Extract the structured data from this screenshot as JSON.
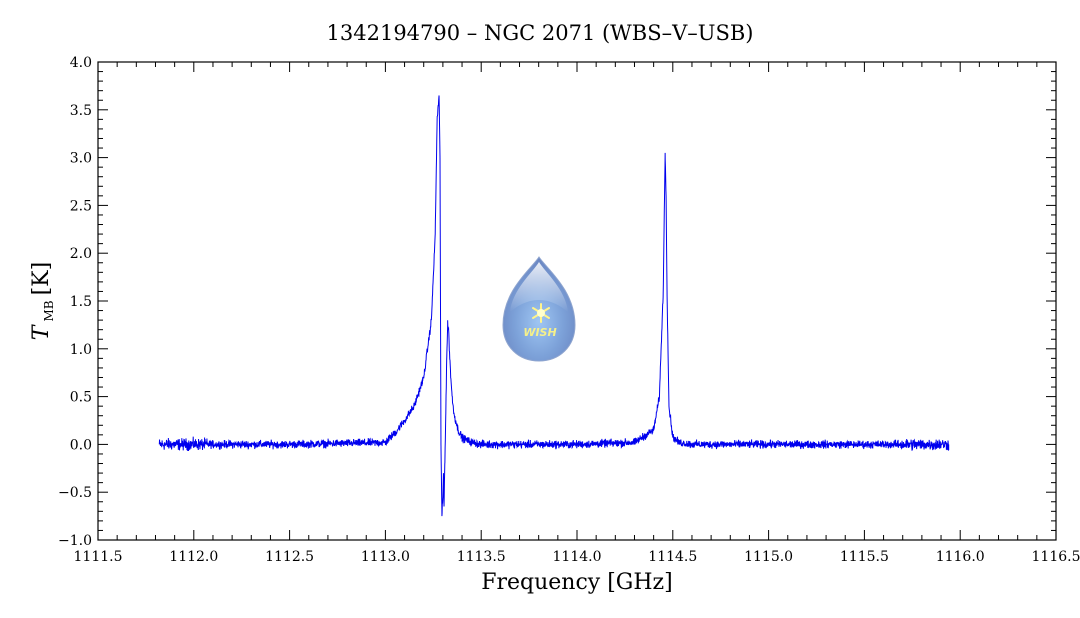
{
  "chart_data": {
    "type": "line",
    "title": "1342194790 – NGC 2071 (WBS–V–USB)",
    "xlabel": "Frequency [GHz]",
    "ylabel": {
      "symbol": "T",
      "subscript": "MB",
      "unit": "[K]"
    },
    "xlim": [
      1111.5,
      1116.5
    ],
    "ylim": [
      -1.0,
      4.0
    ],
    "x_ticks": [
      "1111.5",
      "1112.0",
      "1112.5",
      "1113.0",
      "1113.5",
      "1114.0",
      "1114.5",
      "1115.0",
      "1115.5",
      "1116.0",
      "1116.5"
    ],
    "y_ticks": [
      "−1.0",
      "−0.5",
      "0.0",
      "0.5",
      "1.0",
      "1.5",
      "2.0",
      "2.5",
      "3.0",
      "3.5",
      "4.0"
    ],
    "grid": false,
    "series": [
      {
        "color": "#0000ee",
        "x": [
          1111.82,
          1112.5,
          1113.0,
          1113.05,
          1113.1,
          1113.15,
          1113.2,
          1113.24,
          1113.26,
          1113.27,
          1113.28,
          1113.285,
          1113.29,
          1113.295,
          1113.3,
          1113.303,
          1113.306,
          1113.31,
          1113.315,
          1113.32,
          1113.325,
          1113.33,
          1113.335,
          1113.34,
          1113.35,
          1113.36,
          1113.38,
          1113.4,
          1113.45,
          1113.5,
          1113.6,
          1114.0,
          1114.3,
          1114.4,
          1114.43,
          1114.45,
          1114.46,
          1114.465,
          1114.47,
          1114.48,
          1114.5,
          1114.53,
          1114.6,
          1115.0,
          1115.94
        ],
        "y": [
          0.0,
          0.0,
          0.02,
          0.12,
          0.25,
          0.4,
          0.7,
          1.3,
          2.2,
          3.4,
          3.65,
          3.0,
          0.0,
          -0.75,
          -0.55,
          -0.3,
          -0.65,
          -0.2,
          0.3,
          0.9,
          1.25,
          1.2,
          0.95,
          0.75,
          0.45,
          0.3,
          0.15,
          0.07,
          0.02,
          0.0,
          0.0,
          0.0,
          0.02,
          0.15,
          0.5,
          1.6,
          3.05,
          2.6,
          1.6,
          0.4,
          0.08,
          0.02,
          0.0,
          0.0,
          0.0
        ],
        "noise_amplitude_k": 0.05
      }
    ],
    "logo_text": "WISH"
  }
}
